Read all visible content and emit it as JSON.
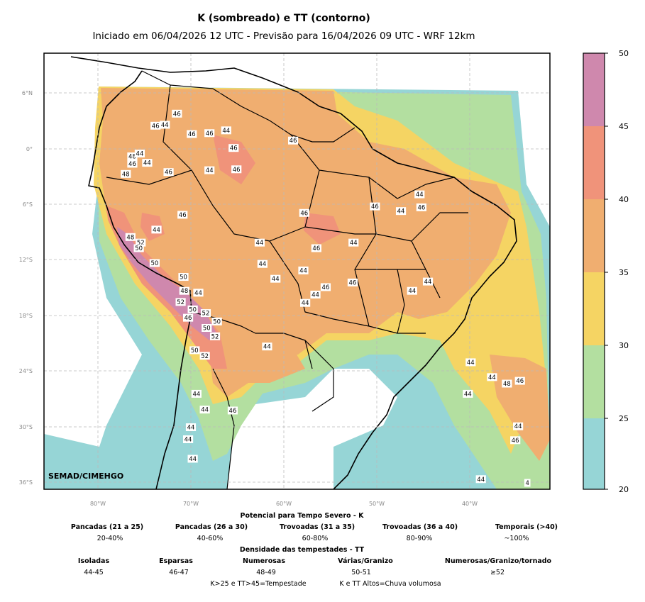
{
  "title": "K (sombreado) e TT (contorno)",
  "subtitle": "Iniciado em 06/04/2026 12 UTC - Previsão para 16/04/2026 09 UTC - WRF 12km",
  "watermark": "SEMAD/CIMEHGO",
  "lat_ticks": [
    "6°N",
    "0°",
    "6°S",
    "12°S",
    "18°S",
    "24°S",
    "30°S",
    "36°S"
  ],
  "lon_ticks": [
    "80°W",
    "70°W",
    "60°W",
    "50°W",
    "40°W"
  ],
  "colorbar": {
    "ticks": [
      "50",
      "45",
      "40",
      "35",
      "30",
      "25",
      "20"
    ],
    "colors": [
      "#cf88ad",
      "#f0937a",
      "#f0ae70",
      "#f5d463",
      "#b3dfa0",
      "#96d5d6"
    ]
  },
  "contour_labels": [
    {
      "text": "46",
      "lon": -71.5,
      "lat": 3.8
    },
    {
      "text": "46",
      "lon": -73.8,
      "lat": 2.5
    },
    {
      "text": "44",
      "lon": -72.8,
      "lat": 2.6
    },
    {
      "text": "46",
      "lon": -69.9,
      "lat": 1.6
    },
    {
      "text": "46",
      "lon": -68.0,
      "lat": 1.7
    },
    {
      "text": "44",
      "lon": -66.2,
      "lat": 2.0
    },
    {
      "text": "46",
      "lon": -65.4,
      "lat": 0.1
    },
    {
      "text": "48",
      "lon": -76.3,
      "lat": -0.8
    },
    {
      "text": "44",
      "lon": -75.5,
      "lat": -0.5
    },
    {
      "text": "46",
      "lon": -76.3,
      "lat": -1.6
    },
    {
      "text": "44",
      "lon": -74.7,
      "lat": -1.5
    },
    {
      "text": "46",
      "lon": -72.4,
      "lat": -2.5
    },
    {
      "text": "48",
      "lon": -77.0,
      "lat": -2.7
    },
    {
      "text": "44",
      "lon": -68.0,
      "lat": -2.3
    },
    {
      "text": "46",
      "lon": -65.1,
      "lat": -2.2
    },
    {
      "text": "46",
      "lon": -59.0,
      "lat": 0.9
    },
    {
      "text": "44",
      "lon": -45.4,
      "lat": -4.9
    },
    {
      "text": "46",
      "lon": -50.2,
      "lat": -6.2
    },
    {
      "text": "44",
      "lon": -47.4,
      "lat": -6.7
    },
    {
      "text": "46",
      "lon": -45.2,
      "lat": -6.3
    },
    {
      "text": "46",
      "lon": -70.9,
      "lat": -7.1
    },
    {
      "text": "46",
      "lon": -57.8,
      "lat": -6.9
    },
    {
      "text": "44",
      "lon": -73.7,
      "lat": -8.7
    },
    {
      "text": "48",
      "lon": -76.5,
      "lat": -9.5
    },
    {
      "text": "52",
      "lon": -75.4,
      "lat": -10.1
    },
    {
      "text": "50",
      "lon": -75.6,
      "lat": -10.7
    },
    {
      "text": "44",
      "lon": -62.6,
      "lat": -10.1
    },
    {
      "text": "46",
      "lon": -56.5,
      "lat": -10.7
    },
    {
      "text": "44",
      "lon": -52.5,
      "lat": -10.1
    },
    {
      "text": "50",
      "lon": -73.9,
      "lat": -12.3
    },
    {
      "text": "44",
      "lon": -62.3,
      "lat": -12.4
    },
    {
      "text": "44",
      "lon": -57.9,
      "lat": -13.1
    },
    {
      "text": "44",
      "lon": -60.9,
      "lat": -14.0
    },
    {
      "text": "50",
      "lon": -70.8,
      "lat": -13.8
    },
    {
      "text": "46",
      "lon": -52.6,
      "lat": -14.4
    },
    {
      "text": "44",
      "lon": -44.5,
      "lat": -14.3
    },
    {
      "text": "48",
      "lon": -70.7,
      "lat": -15.3
    },
    {
      "text": "44",
      "lon": -69.2,
      "lat": -15.5
    },
    {
      "text": "46",
      "lon": -55.5,
      "lat": -14.9
    },
    {
      "text": "44",
      "lon": -46.2,
      "lat": -15.3
    },
    {
      "text": "44",
      "lon": -56.6,
      "lat": -15.7
    },
    {
      "text": "52",
      "lon": -71.1,
      "lat": -16.5
    },
    {
      "text": "44",
      "lon": -57.7,
      "lat": -16.6
    },
    {
      "text": "50",
      "lon": -69.8,
      "lat": -17.3
    },
    {
      "text": "52",
      "lon": -68.4,
      "lat": -17.7
    },
    {
      "text": "46",
      "lon": -70.3,
      "lat": -18.2
    },
    {
      "text": "50",
      "lon": -67.2,
      "lat": -18.6
    },
    {
      "text": "50",
      "lon": -68.3,
      "lat": -19.3
    },
    {
      "text": "52",
      "lon": -67.4,
      "lat": -20.2
    },
    {
      "text": "44",
      "lon": -61.8,
      "lat": -21.3
    },
    {
      "text": "50",
      "lon": -69.6,
      "lat": -21.7
    },
    {
      "text": "52",
      "lon": -68.5,
      "lat": -22.3
    },
    {
      "text": "44",
      "lon": -39.9,
      "lat": -23.0
    },
    {
      "text": "44",
      "lon": -37.6,
      "lat": -24.6
    },
    {
      "text": "48",
      "lon": -36.0,
      "lat": -25.3
    },
    {
      "text": "46",
      "lon": -34.6,
      "lat": -25.0
    },
    {
      "text": "44",
      "lon": -69.4,
      "lat": -26.4
    },
    {
      "text": "44",
      "lon": -40.2,
      "lat": -26.4
    },
    {
      "text": "44",
      "lon": -68.5,
      "lat": -28.1
    },
    {
      "text": "46",
      "lon": -65.5,
      "lat": -28.2
    },
    {
      "text": "44",
      "lon": -34.8,
      "lat": -29.9
    },
    {
      "text": "44",
      "lon": -70.0,
      "lat": -30.0
    },
    {
      "text": "46",
      "lon": -35.1,
      "lat": -31.4
    },
    {
      "text": "44",
      "lon": -70.3,
      "lat": -31.3
    },
    {
      "text": "44",
      "lon": -69.8,
      "lat": -33.4
    },
    {
      "text": "44",
      "lon": -38.8,
      "lat": -35.6
    },
    {
      "text": "4",
      "lon": -33.8,
      "lat": -36.0
    }
  ],
  "legend": {
    "k_title": "Potencial para Tempo Severo - K",
    "k_items": [
      {
        "label": "Pancadas (21 a 25)",
        "value": "20-40%"
      },
      {
        "label": "Pancadas (26 a 30)",
        "value": "40-60%"
      },
      {
        "label": "Trovoadas (31 a 35)",
        "value": "60-80%"
      },
      {
        "label": "Trovoadas (36 a 40)",
        "value": "80-90%"
      },
      {
        "label": "Temporais (>40)",
        "value": "~100%"
      }
    ],
    "tt_title": "Densidade das tempestades - TT",
    "tt_items": [
      {
        "label": "Isoladas",
        "value": "44-45"
      },
      {
        "label": "Esparsas",
        "value": "46-47"
      },
      {
        "label": "Numerosas",
        "value": "48-49"
      },
      {
        "label": "Várias/Granizo",
        "value": "50-51"
      },
      {
        "label": "Numerosas/Granizo/tornado",
        "value": "≥52"
      }
    ],
    "notes": [
      "K>25 e TT>45=Tempestade",
      "K e TT Altos=Chuva volumosa"
    ]
  }
}
